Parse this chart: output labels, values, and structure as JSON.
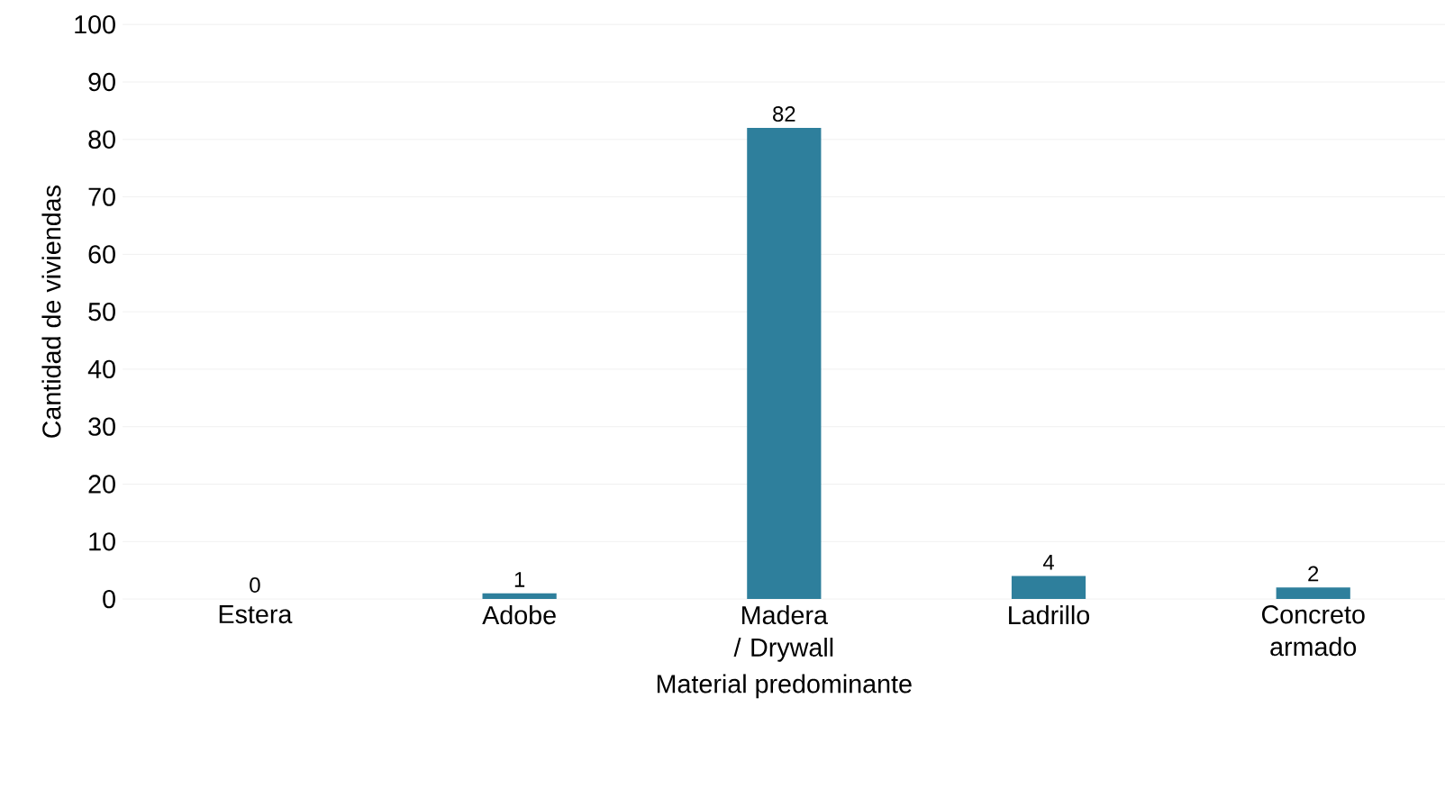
{
  "chart_data": {
    "type": "bar",
    "xlabel": "Material predominante",
    "ylabel": "Cantidad de viviendas",
    "categories": [
      "Estera",
      "Adobe",
      "Madera / Drywall",
      "Ladrillo",
      "Concreto armado"
    ],
    "values": [
      0,
      1,
      82,
      4,
      2
    ],
    "color": "#2e7f9c",
    "ylim": [
      0,
      100
    ],
    "yticks": [
      0,
      10,
      20,
      30,
      40,
      50,
      60,
      70,
      80,
      90,
      100
    ],
    "grid": "y",
    "data_labels": true
  }
}
